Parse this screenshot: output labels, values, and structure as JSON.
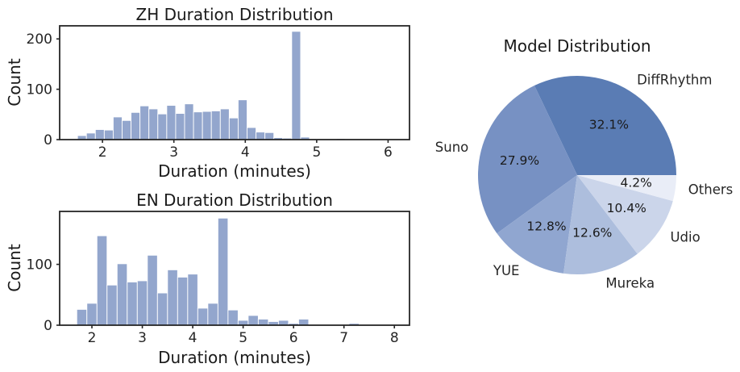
{
  "figure": {
    "background": "#ffffff",
    "text_color": "#1a1a1a",
    "axis_color": "#262626",
    "histogram_bar_fill": "#93a6cd",
    "histogram_bar_edge": "#ffffff"
  },
  "chart_data": [
    {
      "type": "bar",
      "subtype": "histogram",
      "title": "ZH Duration Distribution",
      "xlabel": "Duration (minutes)",
      "ylabel": "Count",
      "bin_start": 1.65,
      "bin_width": 0.125,
      "counts": [
        8,
        13,
        20,
        19,
        45,
        38,
        54,
        67,
        61,
        51,
        68,
        52,
        71,
        55,
        56,
        57,
        61,
        43,
        79,
        24,
        15,
        14,
        4,
        3,
        215,
        5,
        0,
        0,
        1,
        2,
        1
      ],
      "xlim": [
        1.4,
        6.3
      ],
      "ylim": [
        0,
        226
      ],
      "xticks": [
        2,
        3,
        4,
        5,
        6
      ],
      "yticks": [
        0,
        100,
        200
      ],
      "grid": false,
      "legend": "none"
    },
    {
      "type": "bar",
      "subtype": "histogram",
      "title": "EN Duration Distribution",
      "xlabel": "Duration (minutes)",
      "ylabel": "Count",
      "bin_start": 1.7,
      "bin_width": 0.2,
      "counts": [
        26,
        36,
        147,
        66,
        101,
        71,
        73,
        115,
        53,
        91,
        79,
        84,
        28,
        36,
        176,
        25,
        8,
        16,
        10,
        6,
        8,
        3,
        10,
        0,
        0,
        0,
        0,
        3
      ],
      "xlim": [
        1.36,
        8.3
      ],
      "ylim": [
        0,
        187
      ],
      "xticks": [
        2,
        3,
        4,
        5,
        6,
        7,
        8
      ],
      "yticks": [
        0,
        100
      ],
      "grid": false,
      "legend": "none"
    },
    {
      "type": "pie",
      "title": "Model Distribution",
      "start_angle": 0,
      "counterclock": true,
      "slices": [
        {
          "label": "DiffRhythm",
          "value": 32.1,
          "pct_label": "32.1%",
          "color": "#5a7cb4"
        },
        {
          "label": "Suno",
          "value": 27.9,
          "pct_label": "27.9%",
          "color": "#7791c3"
        },
        {
          "label": "YUE",
          "value": 12.8,
          "pct_label": "12.8%",
          "color": "#90a6d0"
        },
        {
          "label": "Mureka",
          "value": 12.6,
          "pct_label": "12.6%",
          "color": "#adbedd"
        },
        {
          "label": "Udio",
          "value": 10.4,
          "pct_label": "10.4%",
          "color": "#cbd5ea"
        },
        {
          "label": "Others",
          "value": 4.2,
          "pct_label": "4.2%",
          "color": "#e9edf7"
        }
      ]
    }
  ]
}
